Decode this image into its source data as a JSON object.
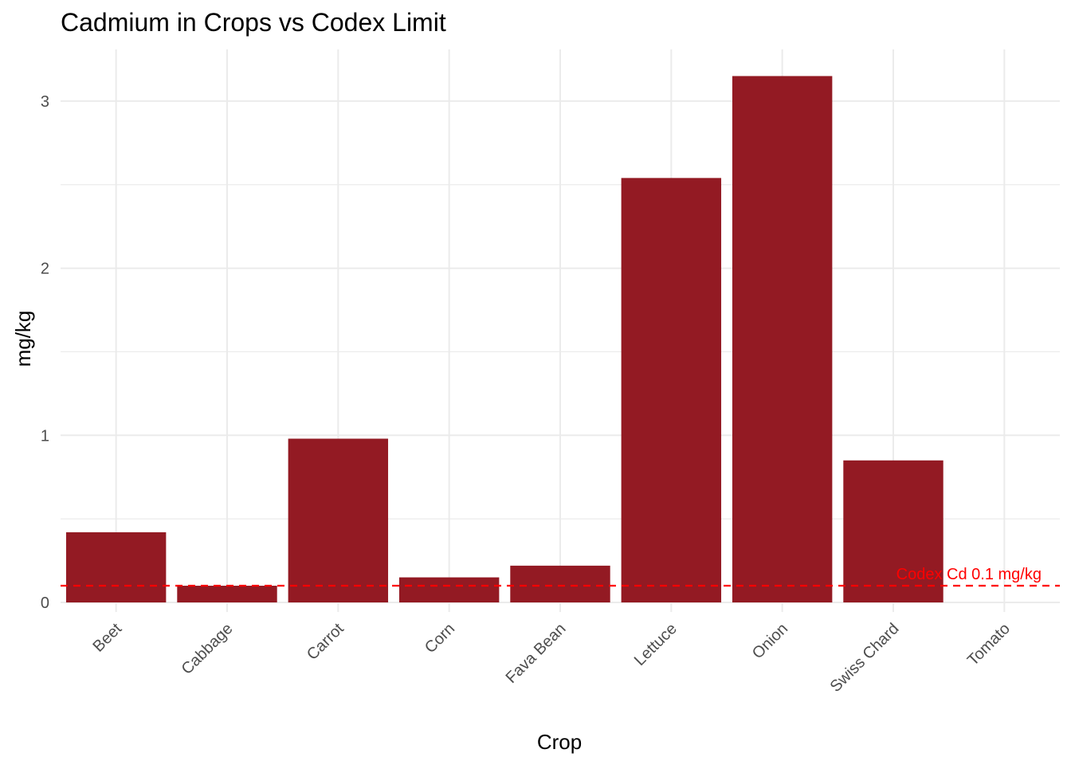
{
  "chart_data": {
    "type": "bar",
    "title": "Cadmium in Crops vs Codex Limit",
    "xlabel": "Crop",
    "ylabel": "mg/kg",
    "categories": [
      "Beet",
      "Cabbage",
      "Carrot",
      "Corn",
      "Fava Bean",
      "Lettuce",
      "Onion",
      "Swiss Chard",
      "Tomato"
    ],
    "values": [
      0.42,
      0.1,
      0.98,
      0.15,
      0.22,
      2.54,
      3.15,
      0.85,
      0.0
    ],
    "ylim": [
      -0.05,
      3.3
    ],
    "yticks": [
      0,
      1,
      2,
      3
    ],
    "grid": true,
    "bar_color": "#931a23",
    "reference_line": {
      "value": 0.1,
      "label": "Codex Cd 0.1 mg/kg",
      "color": "#ff0000",
      "style": "dashed"
    }
  }
}
